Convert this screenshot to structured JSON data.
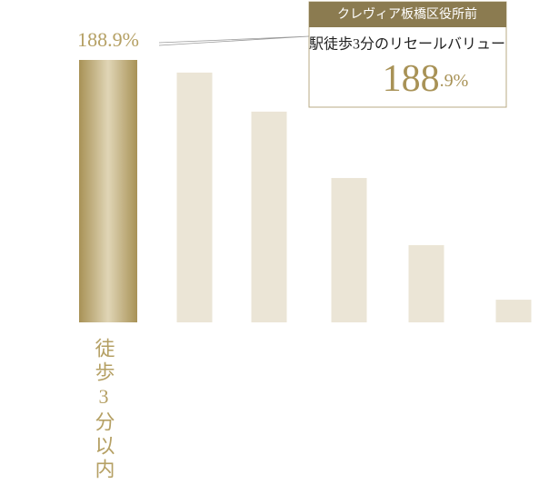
{
  "chart_data": {
    "type": "bar",
    "categories": [
      "徒歩3分以内",
      null,
      null,
      null,
      null,
      null
    ],
    "values": [
      188.9,
      179.8,
      151.7,
      103.9,
      55.6,
      16.3
    ],
    "value_labels": [
      "188.9%",
      null,
      null,
      null,
      null,
      null
    ],
    "color": "#ebe5d6",
    "highlight_color": "#b5a064",
    "callout": {
      "title": "クレヴィア板橋区役所前",
      "subtitle": "駅徒歩3分のリセールバリュー",
      "value_label": "188.9%"
    }
  }
}
